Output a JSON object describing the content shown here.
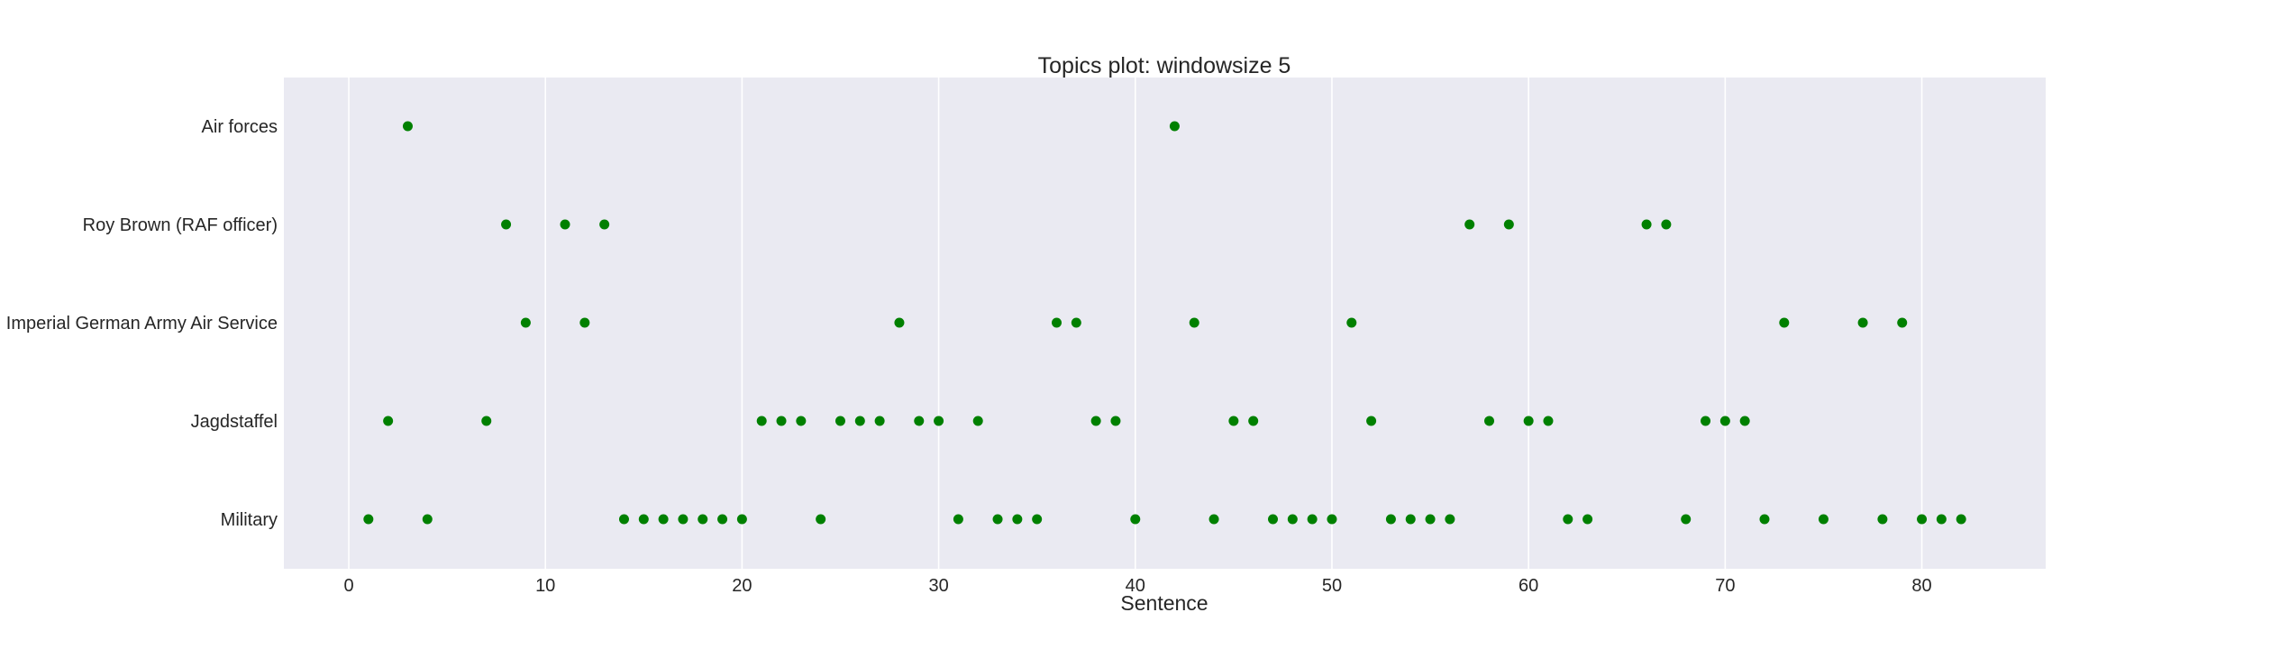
{
  "chart_data": {
    "type": "scatter",
    "title": "Topics plot: windowsize 5",
    "xlabel": "Sentence",
    "ylabel": "",
    "xlim": [
      -3.3,
      86.3
    ],
    "x_ticks": [
      0,
      10,
      20,
      30,
      40,
      50,
      60,
      70,
      80
    ],
    "categories": [
      "Military",
      "Jagdstaffel",
      "Imperial German Army Air Service",
      "Roy Brown (RAF officer)",
      "Air forces"
    ],
    "grid": "vertical",
    "marker_color": "#008000",
    "background_color": "#eaeaf2",
    "series": [
      {
        "category": "Air forces",
        "x": [
          3,
          42
        ]
      },
      {
        "category": "Roy Brown (RAF officer)",
        "x": [
          8,
          11,
          13,
          57,
          59,
          66,
          67
        ]
      },
      {
        "category": "Imperial German Army Air Service",
        "x": [
          9,
          12,
          28,
          36,
          37,
          43,
          51,
          73,
          77,
          79
        ]
      },
      {
        "category": "Jagdstaffel",
        "x": [
          2,
          7,
          21,
          22,
          23,
          25,
          26,
          27,
          29,
          30,
          32,
          38,
          39,
          45,
          46,
          52,
          58,
          60,
          61,
          69,
          70,
          71
        ]
      },
      {
        "category": "Military",
        "x": [
          1,
          4,
          14,
          15,
          16,
          17,
          18,
          19,
          20,
          24,
          31,
          33,
          34,
          35,
          40,
          44,
          47,
          48,
          49,
          50,
          53,
          54,
          55,
          56,
          62,
          63,
          68,
          72,
          75,
          78,
          80,
          81,
          82
        ]
      }
    ]
  }
}
